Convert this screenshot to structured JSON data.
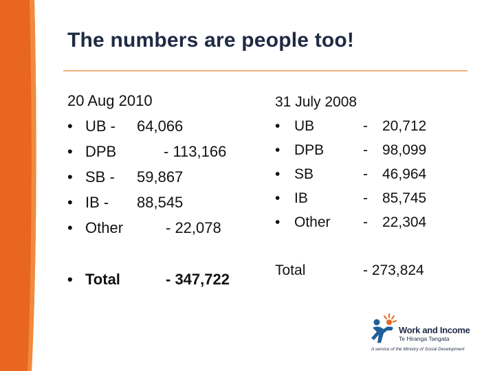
{
  "slide": {
    "title": "The numbers are people too!",
    "colors": {
      "accent": "#e8661f",
      "rule": "#f3b07a",
      "title": "#1f2a44"
    },
    "left": {
      "heading": "20 Aug 2010",
      "items": [
        {
          "label": "UB -",
          "value": "64,066"
        },
        {
          "label": "DPB",
          "value": "- 113,166"
        },
        {
          "label": "SB -",
          "value": "59,867"
        },
        {
          "label": "IB  -",
          "value": "88,545"
        },
        {
          "label": "Other",
          "value": "-   22,078"
        }
      ],
      "total_label": "Total",
      "total_value": "- 347,722"
    },
    "right": {
      "heading": "31 July 2008",
      "items": [
        {
          "label": "UB",
          "dash": "-",
          "value": "20,712"
        },
        {
          "label": "DPB",
          "dash": "-",
          "value": "98,099"
        },
        {
          "label": "SB",
          "dash": "-",
          "value": "46,964"
        },
        {
          "label": "IB",
          "dash": "-",
          "value": "85,745"
        },
        {
          "label": "Other",
          "dash": "-",
          "value": "22,304"
        }
      ],
      "total_label": "Total",
      "total_value": "-  273,824"
    },
    "bullet": "•",
    "logo": {
      "name": "Work and Income",
      "subtitle": "Te Hiranga Tangata",
      "tagline": "A service of the Ministry of Social Development"
    }
  }
}
